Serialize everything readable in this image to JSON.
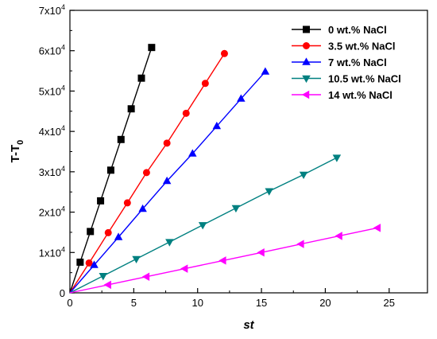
{
  "chart_data": {
    "type": "line",
    "xlabel": "st",
    "ylabel": "T-T",
    "ylabel_subscript": "0",
    "xlim": [
      0,
      28
    ],
    "ylim": [
      0,
      70000
    ],
    "x_ticks": [
      0,
      5,
      10,
      15,
      20,
      25
    ],
    "x_tick_labels": [
      "0",
      "5",
      "10",
      "15",
      "20",
      "25"
    ],
    "y_ticks": [
      0,
      10000,
      20000,
      30000,
      40000,
      50000,
      60000,
      70000
    ],
    "y_tick_labels": [
      {
        "mant": "0",
        "exp": ""
      },
      {
        "mant": "1x10",
        "exp": "4"
      },
      {
        "mant": "2x10",
        "exp": "4"
      },
      {
        "mant": "3x10",
        "exp": "4"
      },
      {
        "mant": "4x10",
        "exp": "4"
      },
      {
        "mant": "5x10",
        "exp": "4"
      },
      {
        "mant": "6x10",
        "exp": "4"
      },
      {
        "mant": "7x10",
        "exp": "4"
      }
    ],
    "grid": false,
    "legend_position": "top-right",
    "series": [
      {
        "name": "0 wt.% NaCl",
        "color": "#000000",
        "marker": "square",
        "x": [
          0,
          0.8,
          1.6,
          2.4,
          3.2,
          4.0,
          4.8,
          5.6,
          6.4
        ],
        "y": [
          0,
          7600,
          15200,
          22800,
          30400,
          38000,
          45600,
          53200,
          60800
        ]
      },
      {
        "name": "3.5 wt.% NaCl",
        "color": "#ff0000",
        "marker": "circle",
        "x": [
          0,
          1.5,
          3.0,
          4.5,
          6.0,
          7.6,
          9.1,
          10.6,
          12.1
        ],
        "y": [
          0,
          7400,
          14900,
          22300,
          29800,
          37100,
          44500,
          51900,
          59300
        ]
      },
      {
        "name": "7 wt.% NaCl",
        "color": "#0000ff",
        "marker": "triangle-up",
        "x": [
          0,
          1.9,
          3.8,
          5.7,
          7.6,
          9.6,
          11.5,
          13.4,
          15.3
        ],
        "y": [
          0,
          6900,
          13800,
          20800,
          27700,
          34500,
          41300,
          48100,
          54800
        ]
      },
      {
        "name": "10.5 wt.% NaCl",
        "color": "#008080",
        "marker": "triangle-down",
        "x": [
          0,
          2.6,
          5.2,
          7.8,
          10.4,
          13.0,
          15.6,
          18.3,
          20.9
        ],
        "y": [
          0,
          4200,
          8400,
          12600,
          16800,
          21000,
          25200,
          29300,
          33500
        ]
      },
      {
        "name": "14 wt.% NaCl",
        "color": "#ff00ff",
        "marker": "triangle-left",
        "x": [
          0,
          3.0,
          6.0,
          9.0,
          12.0,
          15.0,
          18.1,
          21.1,
          24.1
        ],
        "y": [
          0,
          2000,
          4000,
          6000,
          8000,
          10000,
          12100,
          14100,
          16100
        ]
      }
    ]
  }
}
